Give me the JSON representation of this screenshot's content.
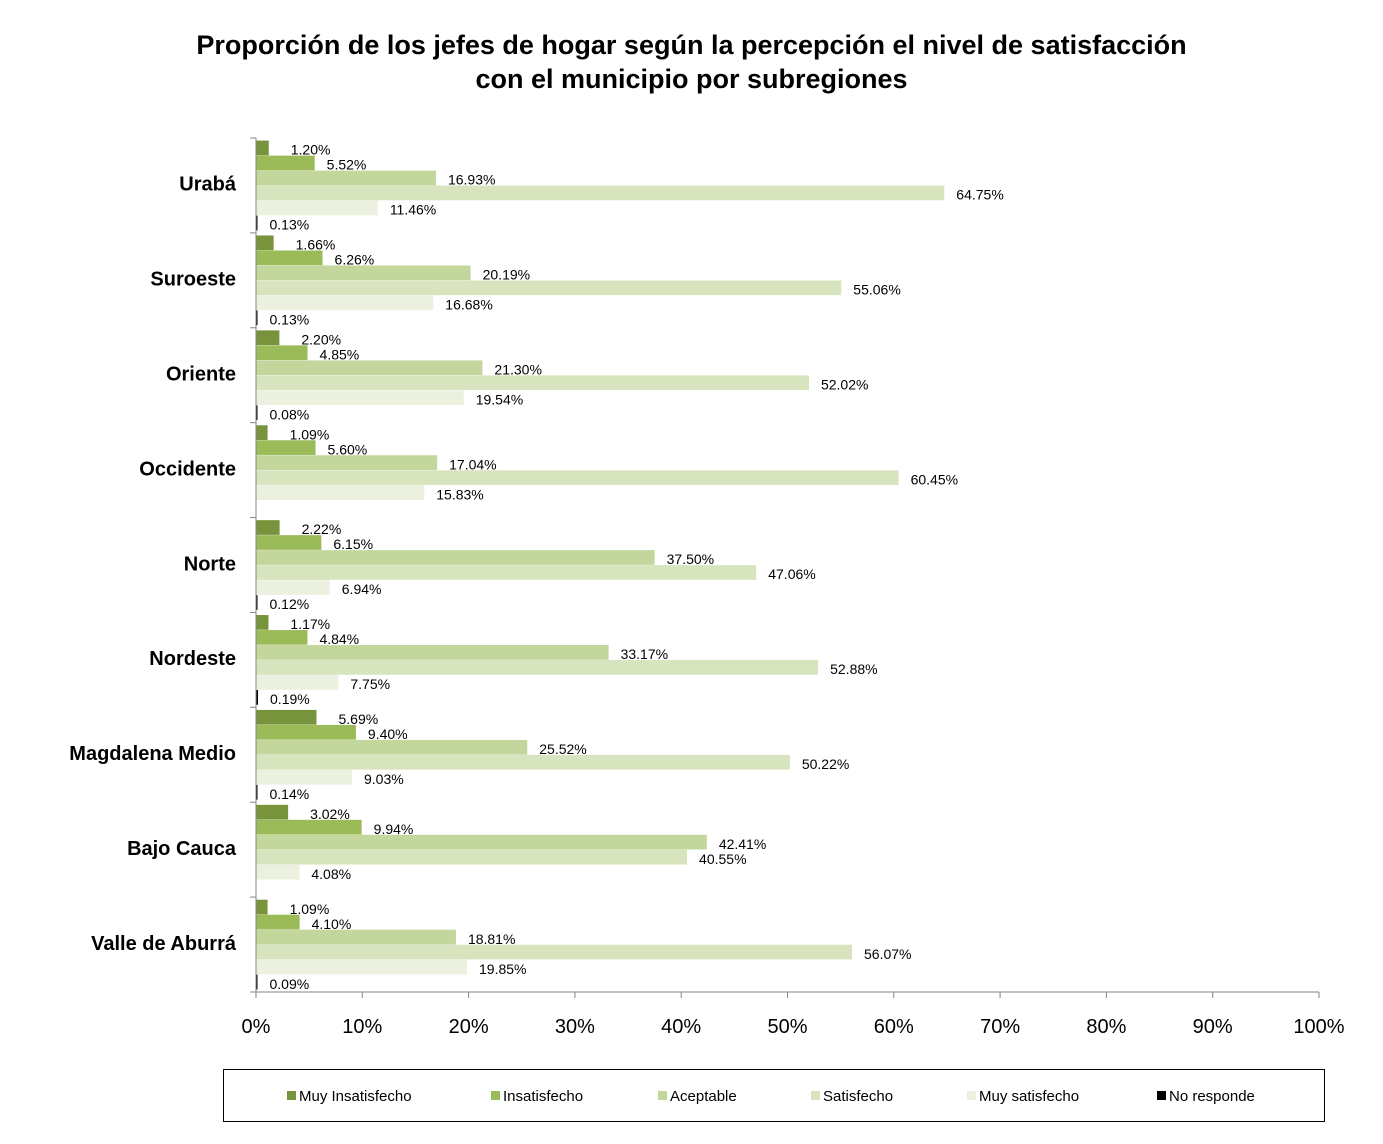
{
  "chart_data": {
    "type": "bar",
    "orientation": "horizontal",
    "title_lines": [
      "Proporción de los jefes de hogar según la percepción el nivel de satisfacción",
      "con el municipio  por subregiones"
    ],
    "xlim": [
      0,
      100
    ],
    "x_ticks": [
      "0%",
      "10%",
      "20%",
      "30%",
      "40%",
      "50%",
      "60%",
      "70%",
      "80%",
      "90%",
      "100%"
    ],
    "grid": false,
    "legend_position": "bottom",
    "categories": [
      "Urabá",
      "Suroeste",
      "Oriente",
      "Occidente",
      "Norte",
      "Nordeste",
      "Magdalena Medio",
      "Bajo Cauca",
      "Valle de Aburrá"
    ],
    "series": [
      {
        "name": "Muy Insatisfecho",
        "color": "#77933c",
        "values": [
          1.2,
          1.66,
          2.2,
          1.09,
          2.22,
          1.17,
          5.69,
          3.02,
          1.09
        ],
        "labels": [
          "1.20%",
          "1.66%",
          "2.20%",
          "1.09%",
          "2.22%",
          "1.17%",
          "5.69%",
          "3.02%",
          "1.09%"
        ]
      },
      {
        "name": "Insatisfecho",
        "color": "#9bbb59",
        "values": [
          5.52,
          6.26,
          4.85,
          5.6,
          6.15,
          4.84,
          9.4,
          9.94,
          4.1
        ],
        "labels": [
          "5.52%",
          "6.26%",
          "4.85%",
          "5.60%",
          "6.15%",
          "4.84%",
          "9.40%",
          "9.94%",
          "4.10%"
        ]
      },
      {
        "name": "Aceptable",
        "color": "#c3d69b",
        "values": [
          16.93,
          20.19,
          21.3,
          17.04,
          37.5,
          33.17,
          25.52,
          42.41,
          18.81
        ],
        "labels": [
          "16.93%",
          "20.19%",
          "21.30%",
          "17.04%",
          "37.50%",
          "33.17%",
          "25.52%",
          "42.41%",
          "18.81%"
        ]
      },
      {
        "name": "Satisfecho",
        "color": "#d7e4bd",
        "values": [
          64.75,
          55.06,
          52.02,
          60.45,
          47.06,
          52.88,
          50.22,
          40.55,
          56.07
        ],
        "labels": [
          "64.75%",
          "55.06%",
          "52.02%",
          "60.45%",
          "47.06%",
          "52.88%",
          "50.22%",
          "40.55%",
          "56.07%"
        ]
      },
      {
        "name": "Muy satisfecho",
        "color": "#ebf1de",
        "values": [
          11.46,
          16.68,
          19.54,
          15.83,
          6.94,
          7.75,
          9.03,
          4.08,
          19.85
        ],
        "labels": [
          "11.46%",
          "16.68%",
          "19.54%",
          "15.83%",
          "6.94%",
          "7.75%",
          "9.03%",
          "4.08%",
          "19.85%"
        ]
      },
      {
        "name": "No responde",
        "color": "#000000",
        "values": [
          0.13,
          0.13,
          0.08,
          null,
          0.12,
          0.19,
          0.14,
          null,
          0.09
        ],
        "labels": [
          "0.13%",
          "0.13%",
          "0.08%",
          "",
          "0.12%",
          "0.19%",
          "0.14%",
          "",
          "0.09%"
        ]
      }
    ]
  }
}
